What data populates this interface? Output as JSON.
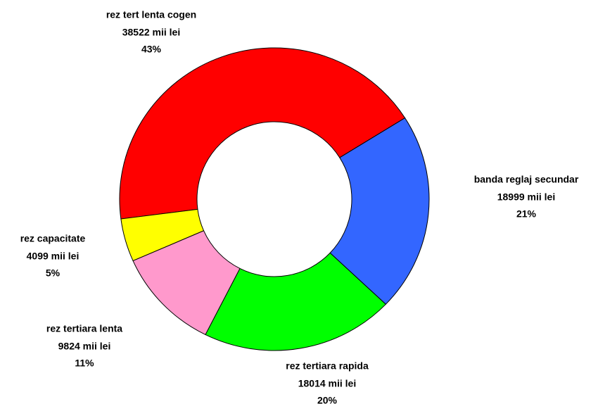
{
  "chart_data": {
    "type": "donut",
    "categories": [
      "rez tert lenta cogen",
      "banda reglaj secundar",
      "rez tertiara rapida",
      "rez tertiara lenta",
      "rez capacitate"
    ],
    "values": [
      38522,
      18999,
      18014,
      9824,
      4099
    ],
    "value_labels": [
      "38522 mii lei",
      "18999 mii lei",
      "18014 mii lei",
      "9824 mii lei",
      "4099 mii lei"
    ],
    "percentages": [
      {
        "value": 43,
        "label": "43%"
      },
      {
        "value": 21,
        "label": "21%"
      },
      {
        "value": 20,
        "label": "20%"
      },
      {
        "value": 11,
        "label": "11%"
      },
      {
        "value": 5,
        "label": "5%"
      }
    ],
    "colors": [
      "#ff0000",
      "#3366ff",
      "#00ff00",
      "#ff99cc",
      "#ffff00"
    ]
  }
}
